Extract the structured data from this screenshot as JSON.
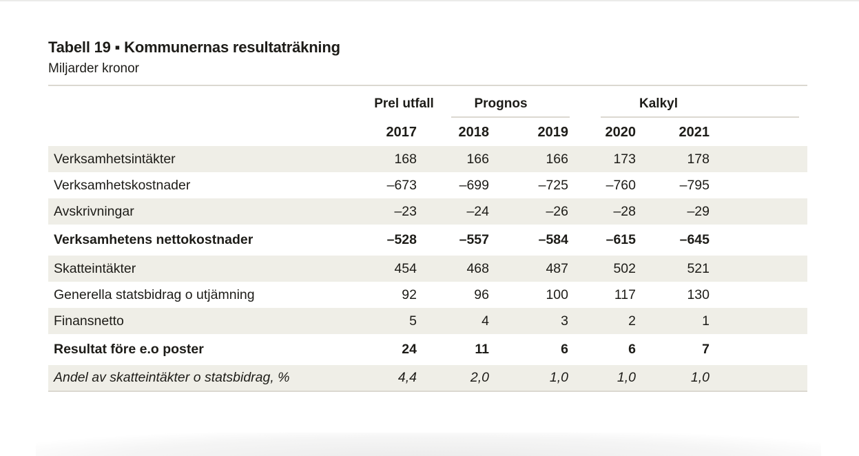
{
  "title": "Tabell 19 ▪ Kommunernas resultaträkning",
  "subtitle": "Miljarder kronor",
  "colors": {
    "stripe": "#efeee7",
    "rule": "#dbd8d0",
    "text": "#1d1c18"
  },
  "header": {
    "groups": [
      {
        "label": "Prel utfall"
      },
      {
        "label": "Prognos"
      },
      {
        "label": "Kalkyl"
      }
    ],
    "years": [
      "2017",
      "2018",
      "2019",
      "2020",
      "2021"
    ]
  },
  "rows": [
    {
      "label": "Verksamhetsintäkter",
      "style": "normal",
      "values": [
        "168",
        "166",
        "166",
        "173",
        "178"
      ]
    },
    {
      "label": "Verksamhetskostnader",
      "style": "normal",
      "values": [
        "–673",
        "–699",
        "–725",
        "–760",
        "–795"
      ]
    },
    {
      "label": "Avskrivningar",
      "style": "normal",
      "values": [
        "–23",
        "–24",
        "–26",
        "–28",
        "–29"
      ]
    },
    {
      "label": "Verksamhetens nettokostnader",
      "style": "bold",
      "values": [
        "–528",
        "–557",
        "–584",
        "–615",
        "–645"
      ]
    },
    {
      "label": "Skatteintäkter",
      "style": "normal",
      "values": [
        "454",
        "468",
        "487",
        "502",
        "521"
      ]
    },
    {
      "label": "Generella statsbidrag o utjämning",
      "style": "normal",
      "values": [
        "92",
        "96",
        "100",
        "117",
        "130"
      ]
    },
    {
      "label": "Finansnetto",
      "style": "normal",
      "values": [
        "5",
        "4",
        "3",
        "2",
        "1"
      ]
    },
    {
      "label": "Resultat före e.o poster",
      "style": "bold",
      "values": [
        "24",
        "11",
        "6",
        "6",
        "7"
      ]
    },
    {
      "label": "Andel av skatteintäkter o statsbidrag, %",
      "style": "italic",
      "values": [
        "4,4",
        "2,0",
        "1,0",
        "1,0",
        "1,0"
      ]
    }
  ],
  "chart_data": {
    "type": "table",
    "title": "Tabell 19 ▪ Kommunernas resultaträkning",
    "unit": "Miljarder kronor",
    "column_groups": [
      {
        "label": "Prel utfall",
        "columns": [
          "2017"
        ]
      },
      {
        "label": "Prognos",
        "columns": [
          "2018",
          "2019"
        ]
      },
      {
        "label": "Kalkyl",
        "columns": [
          "2020",
          "2021"
        ]
      }
    ],
    "columns": [
      "2017",
      "2018",
      "2019",
      "2020",
      "2021"
    ],
    "rows": [
      {
        "label": "Verksamhetsintäkter",
        "values": [
          168,
          166,
          166,
          173,
          178
        ]
      },
      {
        "label": "Verksamhetskostnader",
        "values": [
          -673,
          -699,
          -725,
          -760,
          -795
        ]
      },
      {
        "label": "Avskrivningar",
        "values": [
          -23,
          -24,
          -26,
          -28,
          -29
        ]
      },
      {
        "label": "Verksamhetens nettokostnader",
        "values": [
          -528,
          -557,
          -584,
          -615,
          -645
        ],
        "emphasis": "bold"
      },
      {
        "label": "Skatteintäkter",
        "values": [
          454,
          468,
          487,
          502,
          521
        ]
      },
      {
        "label": "Generella statsbidrag o utjämning",
        "values": [
          92,
          96,
          100,
          117,
          130
        ]
      },
      {
        "label": "Finansnetto",
        "values": [
          5,
          4,
          3,
          2,
          1
        ]
      },
      {
        "label": "Resultat före e.o poster",
        "values": [
          24,
          11,
          6,
          6,
          7
        ],
        "emphasis": "bold"
      },
      {
        "label": "Andel av skatteintäkter o statsbidrag, %",
        "values": [
          4.4,
          2.0,
          1.0,
          1.0,
          1.0
        ],
        "emphasis": "italic"
      }
    ]
  }
}
